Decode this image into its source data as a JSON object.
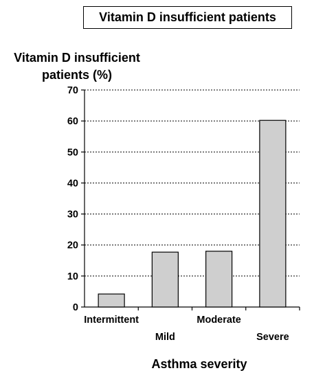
{
  "chart_data": {
    "type": "bar",
    "title": "Vitamin D insufficient patients",
    "ylabel": "Vitamin D insufficient patients (%)",
    "xlabel": "Asthma severity",
    "categories": [
      "Intermittent",
      "Mild",
      "Moderate",
      "Severe"
    ],
    "values": [
      4.2,
      17.7,
      18.0,
      60.2
    ],
    "yticks": [
      0,
      10,
      20,
      30,
      40,
      50,
      60,
      70
    ],
    "ylim": [
      0,
      70
    ],
    "grid": true,
    "grid_style": "dotted",
    "bar_color": "#cfcfcf"
  }
}
